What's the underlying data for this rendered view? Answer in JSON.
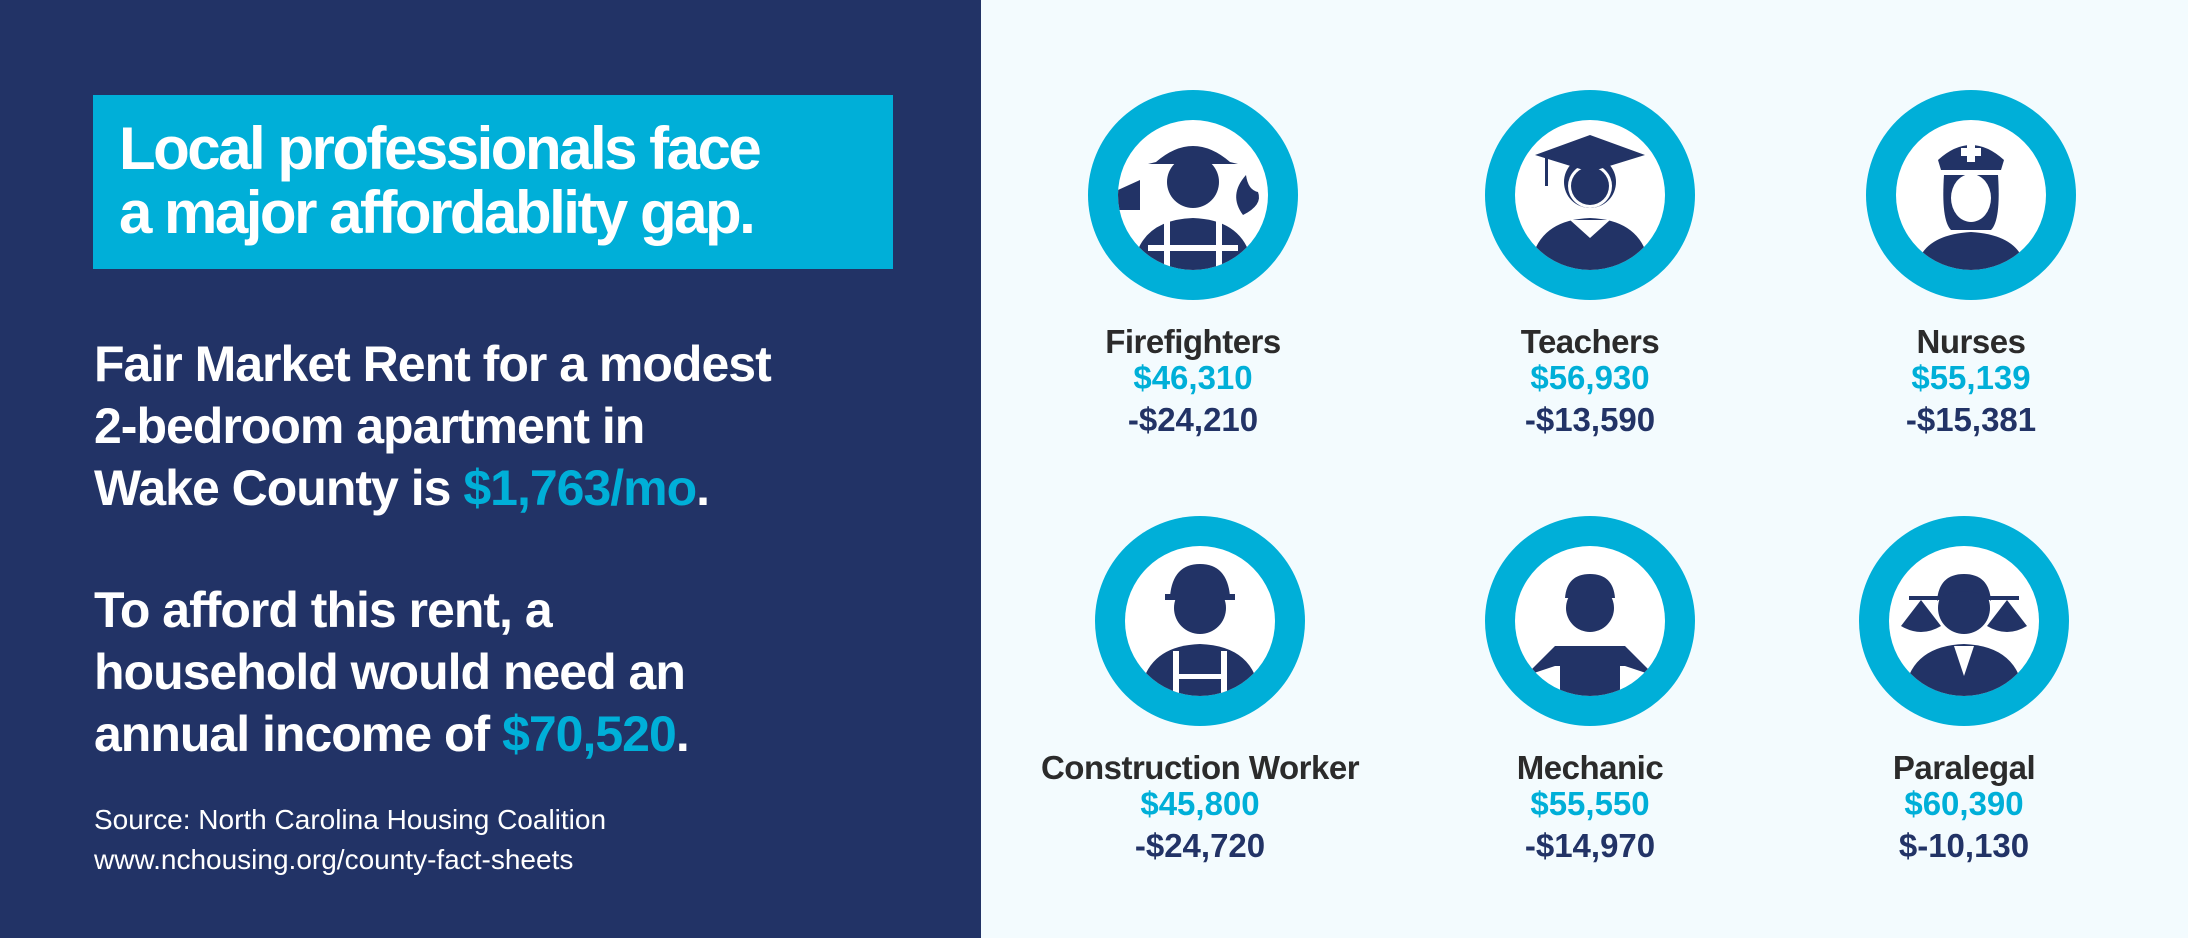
{
  "headline": {
    "line1": "Local professionals face",
    "line2": "a major affordablity gap."
  },
  "rent": {
    "line1": "Fair Market Rent for a modest",
    "line2": "2-bedroom apartment in",
    "line3_prefix": "Wake County is ",
    "amount": "$1,763/mo",
    "suffix": "."
  },
  "income": {
    "line1": "To afford this rent, a",
    "line2": "household would need an",
    "line3_prefix": "annual income of ",
    "amount": "$70,520",
    "suffix": "."
  },
  "source": {
    "line1": "Source: North Carolina Housing Coalition",
    "line2": "www.nchousing.org/county-fact-sheets"
  },
  "colors": {
    "navy": "#223366",
    "cyan": "#00afd8",
    "background": "#f3fbfe"
  },
  "professions": [
    {
      "name": "Firefighters",
      "salary": "$46,310",
      "gap": "-$24,210",
      "icon": "firefighter-icon"
    },
    {
      "name": "Teachers",
      "salary": "$56,930",
      "gap": "-$13,590",
      "icon": "teacher-icon"
    },
    {
      "name": "Nurses",
      "salary": "$55,139",
      "gap": "-$15,381",
      "icon": "nurse-icon"
    },
    {
      "name": "Construction Worker",
      "salary": "$45,800",
      "gap": "-$24,720",
      "icon": "construction-worker-icon"
    },
    {
      "name": "Mechanic",
      "salary": "$55,550",
      "gap": "-$14,970",
      "icon": "mechanic-icon"
    },
    {
      "name": "Paralegal",
      "salary": "$60,390",
      "gap": "$-10,130",
      "icon": "paralegal-icon"
    }
  ]
}
